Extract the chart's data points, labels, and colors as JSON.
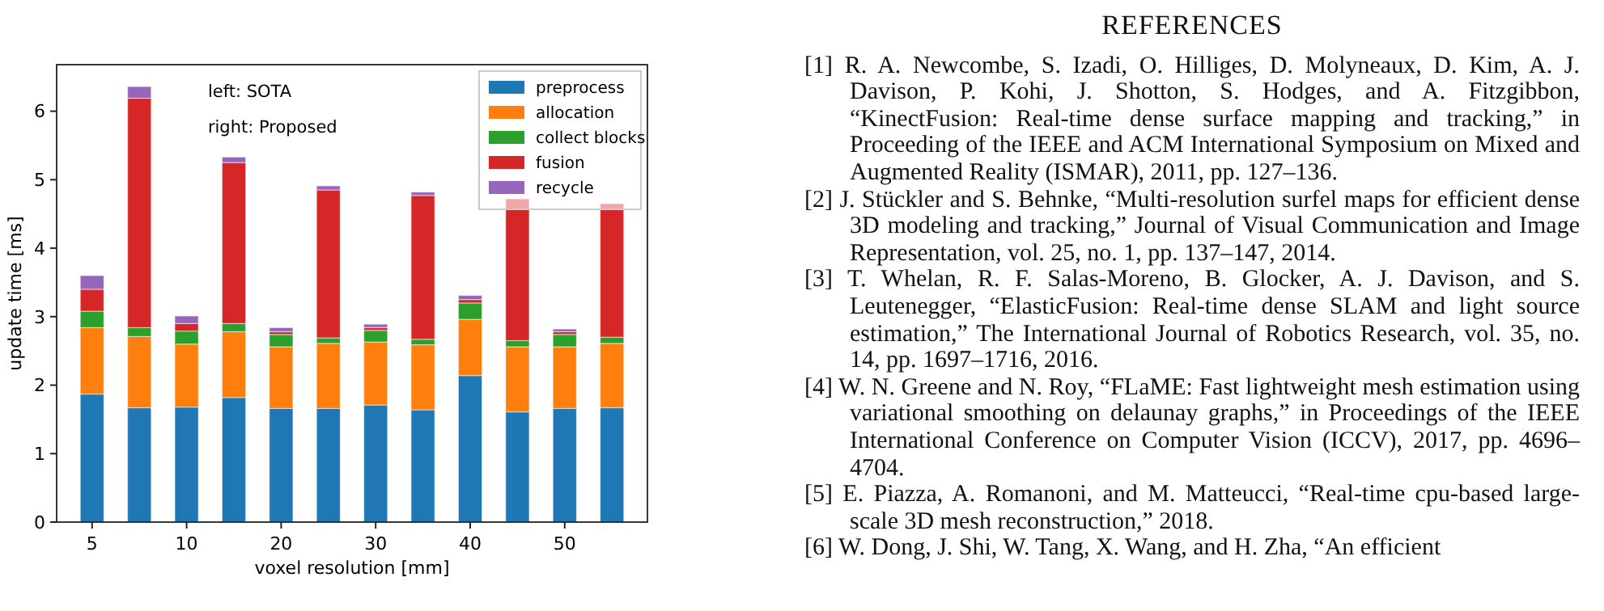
{
  "chart_data": [
    {
      "type": "bar",
      "stacked": true,
      "xlabel": "voxel resolution [mm]",
      "ylabel": "update time [ms]",
      "ylim": [
        0,
        6.68
      ],
      "categories": [
        "5",
        null,
        "10",
        null,
        "20",
        null,
        "30",
        null,
        "40",
        null,
        "50",
        null
      ],
      "yticks": [
        0,
        1,
        2,
        3,
        4,
        5,
        6
      ],
      "legend": "top right",
      "annotations": [
        "left: SOTA",
        "right: Proposed"
      ],
      "series": [
        {
          "name": "preprocess",
          "color": "#1f77b4",
          "values": [
            1.87,
            1.67,
            1.68,
            1.82,
            1.66,
            1.66,
            1.71,
            1.64,
            2.14,
            1.61,
            1.66,
            1.67
          ]
        },
        {
          "name": "allocation",
          "color": "#ff7f0e",
          "values": [
            0.97,
            1.04,
            0.92,
            0.96,
            0.9,
            0.95,
            0.92,
            0.95,
            0.82,
            0.95,
            0.9,
            0.94
          ]
        },
        {
          "name": "collect blocks",
          "color": "#2ca02c",
          "values": [
            0.24,
            0.13,
            0.19,
            0.12,
            0.18,
            0.08,
            0.17,
            0.08,
            0.24,
            0.09,
            0.18,
            0.09
          ]
        },
        {
          "name": "fusion",
          "color": "#d62728",
          "values": [
            0.32,
            3.35,
            0.11,
            2.35,
            0.04,
            2.16,
            0.04,
            2.1,
            0.05,
            2.07,
            0.04,
            1.95
          ]
        },
        {
          "name": "recycle",
          "color": "#9467bd",
          "values": [
            0.2,
            0.17,
            0.11,
            0.08,
            0.06,
            0.06,
            0.05,
            0.05,
            0.06,
            null,
            0.04,
            null
          ]
        }
      ]
    },
    {
      "type": "other",
      "title": "REFERENCES",
      "annotations": [
        "[1] R. A. Newcombe, S. Izadi, O. Hilliges, D. Molyneaux, D. Kim, A. J. Davison, P. Kohi, J. Shotton, S. Hodges, and A. Fitzgibbon, “KinectFusion: Real-time dense surface mapping and tracking,” in Proceeding of the IEEE and ACM International Symposium on Mixed and Augmented Reality (ISMAR), 2011, pp. 127–136.",
        "[2] J. Stückler and S. Behnke, “Multi-resolution surfel maps for efficient dense 3D modeling and tracking,” Journal of Visual Communication and Image Representation, vol. 25, no. 1, pp. 137–147, 2014.",
        "[3] T. Whelan, R. F. Salas-Moreno, B. Glocker, A. J. Davison, and S. Leutenegger, “ElasticFusion: Real-time dense SLAM and light source estimation,” The International Journal of Robotics Research, vol. 35, no. 14, pp. 1697–1716, 2016.",
        "[4] W. N. Greene and N. Roy, “FLaME: Fast lightweight mesh estimation using variational smoothing on delaunay graphs,” in Proceedings of the IEEE International Conference on Computer Vision (ICCV), 2017, pp. 4696–4704.",
        "[5] E. Piazza, A. Romanoni, and M. Matteucci, “Real-time cpu-based large-scale 3D mesh reconstruction,” 2018.",
        "[6] W. Dong, J. Shi, W. Tang, X. Wang, and H. Zha, “An efficient"
      ]
    }
  ]
}
